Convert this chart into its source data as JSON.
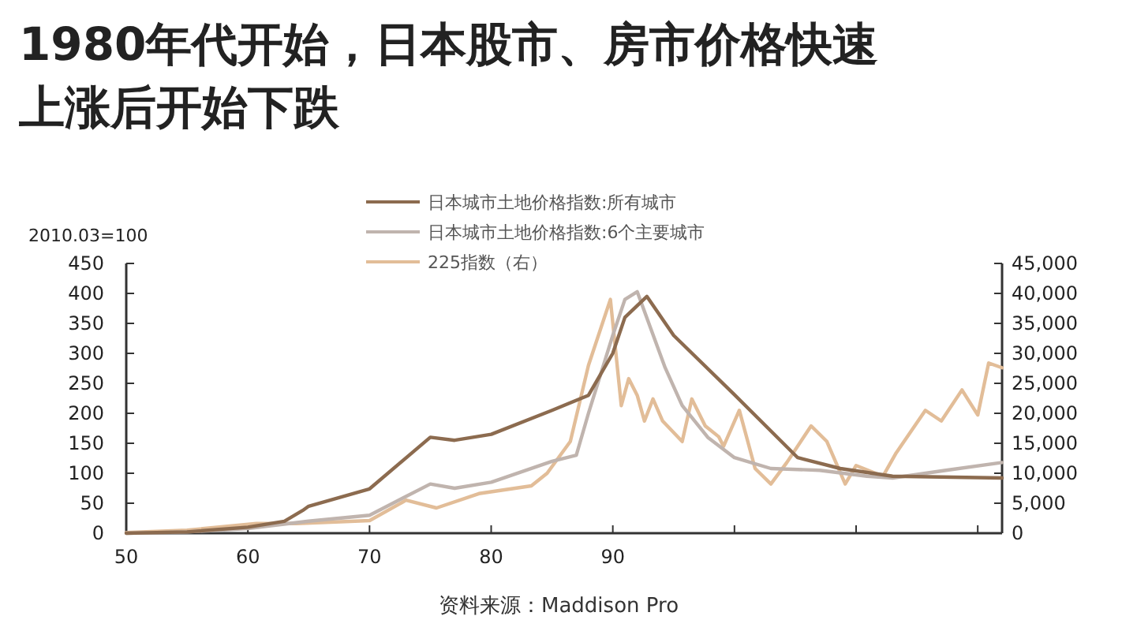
{
  "chart_data": {
    "type": "line",
    "title": "1980年代开始，日本股市、房市价格快速上涨后开始下跌",
    "ylabel": "2010.03=100",
    "annotations": [
      "资料来源：Maddison Pro"
    ],
    "legend": "top",
    "xlim": [
      50,
      122
    ],
    "xticks": [
      50,
      60,
      70,
      80,
      90,
      {
        "value": 100,
        "label": null
      },
      {
        "value": 110,
        "label": null
      },
      {
        "value": 120,
        "label": null
      }
    ],
    "ylim": [
      0,
      450
    ],
    "yticks": [
      0,
      50,
      100,
      150,
      200,
      250,
      300,
      350,
      400,
      450
    ],
    "y2lim": [
      0,
      45000
    ],
    "y2ticks": [
      0,
      {
        "value": 5000,
        "label": "5,000"
      },
      {
        "value": 10000,
        "label": "10,000"
      },
      {
        "value": 15000,
        "label": "15,000"
      },
      {
        "value": 20000,
        "label": "20,000"
      },
      {
        "value": 25000,
        "label": "25,000"
      },
      {
        "value": 30000,
        "label": "30,000"
      },
      {
        "value": 35000,
        "label": "35,000"
      },
      {
        "value": 40000,
        "label": "40,000"
      },
      {
        "value": 45000,
        "label": "45,000"
      }
    ],
    "series": [
      {
        "name": "日本城市土地价格指数:所有城市",
        "color": "#8c6b4f",
        "x": [
          50,
          55,
          60,
          63,
          64.5,
          65,
          70,
          75,
          77,
          80,
          85,
          88,
          90,
          91,
          92.8,
          95,
          100,
          105.2,
          108.7,
          113,
          122
        ],
        "values": [
          0,
          2,
          10,
          20,
          38,
          45,
          74,
          160,
          155,
          165,
          205,
          230,
          300,
          360,
          395,
          330,
          231,
          126,
          108,
          95,
          92
        ]
      },
      {
        "name": "日本城市土地价格指数:6个主要城市",
        "color": "#c0b4ae",
        "x": [
          50,
          55,
          60,
          65,
          70,
          75,
          77,
          80,
          85,
          87,
          88,
          90,
          91,
          92,
          94.3,
          95.7,
          97.8,
          100,
          103,
          107,
          110.9,
          113,
          117.4,
          122
        ],
        "values": [
          0,
          2,
          8,
          20,
          30,
          82,
          75,
          85,
          120,
          130,
          200,
          330,
          390,
          403,
          276,
          213,
          160,
          126,
          108,
          105,
          95,
          92,
          105,
          118
        ]
      },
      {
        "name": "225指数（右）",
        "color": "#e2bd98",
        "axis": "y2",
        "x": [
          50,
          55,
          60.7,
          64,
          70,
          73,
          75.5,
          79,
          83.3,
          84.6,
          86.5,
          88,
          89.8,
          90.7,
          91.3,
          92,
          92.6,
          93.3,
          94.1,
          95.7,
          96.5,
          97.6,
          98.7,
          99.1,
          100.4,
          101.7,
          103,
          104.3,
          106.3,
          107.6,
          109.1,
          110,
          112.2,
          113.3,
          115.7,
          117,
          118.7,
          120,
          120.9,
          122
        ],
        "values": [
          100,
          500,
          1600,
          1600,
          2100,
          5500,
          4200,
          6600,
          7900,
          10000,
          15300,
          28000,
          39000,
          21300,
          25800,
          23000,
          18700,
          22400,
          18700,
          15300,
          22400,
          17900,
          16100,
          14500,
          20500,
          10800,
          8200,
          11800,
          17900,
          15300,
          8200,
          11300,
          9500,
          13400,
          20500,
          18700,
          23900,
          19700,
          28400,
          27600
        ]
      }
    ]
  }
}
